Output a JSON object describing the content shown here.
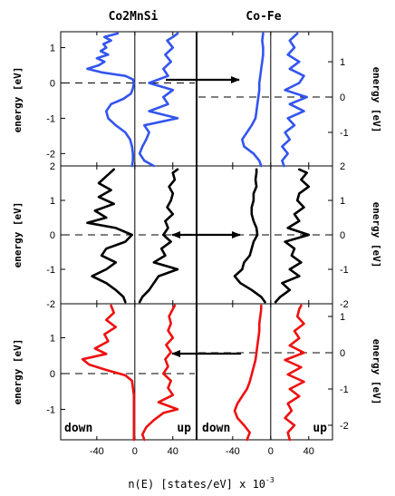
{
  "figure": {
    "left_title": "Co2MnSi",
    "right_title": "Co-Fe",
    "left_ylabel": "energy [eV]",
    "right_ylabel": "energy [eV]",
    "xlabel_main": "n(E)  [states/eV] x 10",
    "xlabel_exp": "-3",
    "spin_down": "down",
    "spin_up": "up"
  },
  "chart_data": [
    {
      "type": "line",
      "row": "top",
      "system": "Co2MnSi",
      "color": "#3355ee",
      "ylim": [
        -2.35,
        1.45
      ],
      "yticks": [
        -2,
        -1,
        0,
        1
      ],
      "xlim": [
        -78,
        65
      ],
      "fermi": 0,
      "down": {
        "y": [
          -2.35,
          -2.2,
          -2.0,
          -1.8,
          -1.6,
          -1.4,
          -1.2,
          -1.0,
          -0.8,
          -0.6,
          -0.45,
          -0.3,
          -0.15,
          0.0,
          0.1,
          0.2,
          0.3,
          0.4,
          0.5,
          0.6,
          0.7,
          0.8,
          0.9,
          1.0,
          1.1,
          1.2,
          1.3,
          1.4
        ],
        "n": [
          -3,
          -2,
          -2,
          -3,
          -5,
          -10,
          -20,
          -28,
          -30,
          -25,
          -12,
          -4,
          -2,
          -1,
          -2,
          -10,
          -35,
          -50,
          -38,
          -32,
          -40,
          -28,
          -36,
          -30,
          -33,
          -25,
          -32,
          -18
        ]
      },
      "up": {
        "y": [
          -2.35,
          -2.2,
          -2.0,
          -1.8,
          -1.6,
          -1.4,
          -1.2,
          -1.0,
          -0.8,
          -0.6,
          -0.4,
          -0.2,
          0.0,
          0.2,
          0.4,
          0.6,
          0.8,
          1.0,
          1.2,
          1.3,
          1.4
        ],
        "n": [
          20,
          10,
          5,
          8,
          12,
          15,
          10,
          45,
          15,
          35,
          30,
          40,
          15,
          35,
          30,
          38,
          32,
          40,
          34,
          40,
          45
        ]
      }
    },
    {
      "type": "line",
      "row": "middle",
      "system": "Co2MnSi",
      "color": "#000000",
      "ylim": [
        -2.0,
        2.0
      ],
      "yticks": [
        -2,
        -1,
        0,
        1,
        2
      ],
      "xlim": [
        -78,
        65
      ],
      "fermi": 0,
      "down": {
        "y": [
          -1.95,
          -1.8,
          -1.6,
          -1.4,
          -1.2,
          -1.0,
          -0.8,
          -0.6,
          -0.4,
          -0.2,
          0.0,
          0.2,
          0.35,
          0.5,
          0.7,
          0.9,
          1.1,
          1.3,
          1.5,
          1.7,
          1.9
        ],
        "n": [
          -10,
          -12,
          -20,
          -30,
          -45,
          -30,
          -20,
          -35,
          -30,
          -10,
          -3,
          -20,
          -50,
          -30,
          -42,
          -22,
          -38,
          -25,
          -38,
          -30,
          -22
        ]
      },
      "up": {
        "y": [
          -1.95,
          -1.8,
          -1.6,
          -1.4,
          -1.2,
          -1.0,
          -0.8,
          -0.6,
          -0.4,
          -0.2,
          0.0,
          0.2,
          0.4,
          0.6,
          0.8,
          1.0,
          1.2,
          1.4,
          1.6,
          1.8,
          1.9
        ],
        "n": [
          5,
          8,
          15,
          20,
          25,
          45,
          20,
          32,
          28,
          38,
          30,
          35,
          32,
          40,
          34,
          38,
          40,
          36,
          42,
          40,
          45
        ]
      }
    },
    {
      "type": "line",
      "row": "bottom",
      "system": "Co2MnSi",
      "color": "#ee1111",
      "ylim": [
        -1.85,
        1.95
      ],
      "yticks": [
        -1,
        0,
        1
      ],
      "xlim": [
        -78,
        65
      ],
      "fermi": 0,
      "down": {
        "y": [
          -1.85,
          -1.6,
          -1.4,
          -1.2,
          -1.0,
          -0.8,
          -0.6,
          -0.4,
          -0.2,
          -0.05,
          0.1,
          0.25,
          0.4,
          0.55,
          0.7,
          0.9,
          1.1,
          1.3,
          1.5,
          1.7,
          1.9
        ],
        "n": [
          -1,
          -1,
          -1,
          -1,
          -1,
          -1,
          -1,
          -2,
          -3,
          -10,
          -30,
          -48,
          -55,
          -30,
          -42,
          -28,
          -32,
          -20,
          -30,
          -22,
          -25
        ]
      },
      "up": {
        "y": [
          -1.85,
          -1.7,
          -1.5,
          -1.3,
          -1.1,
          -1.0,
          -0.8,
          -0.6,
          -0.4,
          -0.2,
          0.0,
          0.2,
          0.4,
          0.6,
          0.8,
          1.0,
          1.2,
          1.4,
          1.6,
          1.8,
          1.9
        ],
        "n": [
          10,
          8,
          12,
          20,
          30,
          45,
          25,
          40,
          35,
          38,
          30,
          35,
          32,
          38,
          33,
          40,
          35,
          38,
          36,
          40,
          42
        ]
      }
    },
    {
      "type": "line",
      "row": "top",
      "system": "Co-Fe",
      "color": "#3355ee",
      "ylim": [
        -1.95,
        1.85
      ],
      "yticks": [
        -1,
        0,
        1
      ],
      "xlim": [
        -78,
        65
      ],
      "fermi": 0,
      "down": {
        "y": [
          -1.95,
          -1.8,
          -1.6,
          -1.4,
          -1.2,
          -1.0,
          -0.8,
          -0.6,
          -0.4,
          -0.2,
          0.0,
          0.2,
          0.4,
          0.6,
          0.8,
          1.0,
          1.2,
          1.4,
          1.6,
          1.8
        ],
        "n": [
          -10,
          -12,
          -18,
          -28,
          -30,
          -25,
          -20,
          -16,
          -15,
          -14,
          -13,
          -12,
          -12,
          -11,
          -10,
          -9,
          -8,
          -8,
          -9,
          -8
        ]
      },
      "up": {
        "y": [
          -1.95,
          -1.8,
          -1.6,
          -1.4,
          -1.2,
          -1.0,
          -0.8,
          -0.6,
          -0.4,
          -0.2,
          0.0,
          0.2,
          0.4,
          0.6,
          0.8,
          1.0,
          1.2,
          1.4,
          1.6,
          1.8
        ],
        "n": [
          14,
          12,
          18,
          12,
          20,
          15,
          25,
          18,
          35,
          20,
          38,
          15,
          30,
          35,
          20,
          30,
          18,
          25,
          20,
          28
        ]
      }
    },
    {
      "type": "line",
      "row": "middle",
      "system": "Co-Fe",
      "color": "#000000",
      "ylim": [
        -2.0,
        2.0
      ],
      "yticks": [
        -2,
        -1,
        0,
        1,
        2
      ],
      "xlim": [
        -78,
        65
      ],
      "fermi": 0,
      "down": {
        "y": [
          -1.95,
          -1.8,
          -1.6,
          -1.4,
          -1.2,
          -1.0,
          -0.8,
          -0.6,
          -0.4,
          -0.2,
          0.0,
          0.2,
          0.4,
          0.6,
          0.8,
          1.0,
          1.2,
          1.4,
          1.6,
          1.8,
          1.9
        ],
        "n": [
          -6,
          -10,
          -20,
          -32,
          -38,
          -30,
          -28,
          -22,
          -20,
          -18,
          -14,
          -15,
          -18,
          -20,
          -20,
          -18,
          -18,
          -15,
          -16,
          -15,
          -15
        ]
      },
      "up": {
        "y": [
          -1.95,
          -1.8,
          -1.6,
          -1.4,
          -1.2,
          -1.0,
          -0.8,
          -0.6,
          -0.4,
          -0.2,
          0.0,
          0.2,
          0.4,
          0.6,
          0.8,
          1.0,
          1.2,
          1.4,
          1.6,
          1.8,
          1.9
        ],
        "n": [
          5,
          10,
          20,
          12,
          30,
          20,
          32,
          22,
          25,
          15,
          40,
          18,
          30,
          25,
          35,
          28,
          30,
          40,
          32,
          38,
          30
        ]
      }
    },
    {
      "type": "line",
      "row": "bottom",
      "system": "Co-Fe",
      "color": "#ee1111",
      "ylim": [
        -2.4,
        1.35
      ],
      "yticks": [
        -2,
        -1,
        0,
        1
      ],
      "xlim": [
        -78,
        65
      ],
      "fermi": 0,
      "down": {
        "y": [
          -2.4,
          -2.2,
          -2.0,
          -1.8,
          -1.6,
          -1.4,
          -1.2,
          -1.0,
          -0.8,
          -0.6,
          -0.4,
          -0.2,
          0.0,
          0.2,
          0.4,
          0.6,
          0.8,
          1.0,
          1.2,
          1.3
        ],
        "n": [
          -25,
          -22,
          -28,
          -35,
          -38,
          -35,
          -30,
          -25,
          -22,
          -20,
          -18,
          -16,
          -15,
          -14,
          -13,
          -12,
          -12,
          -11,
          -10,
          -10
        ]
      },
      "up": {
        "y": [
          -2.4,
          -2.2,
          -2.0,
          -1.8,
          -1.6,
          -1.4,
          -1.2,
          -1.0,
          -0.8,
          -0.6,
          -0.4,
          -0.2,
          0.0,
          0.2,
          0.4,
          0.6,
          0.8,
          1.0,
          1.2,
          1.3
        ],
        "n": [
          20,
          18,
          25,
          15,
          22,
          18,
          30,
          20,
          35,
          18,
          32,
          15,
          35,
          20,
          30,
          25,
          35,
          28,
          30,
          32
        ]
      }
    }
  ],
  "x_tick_labels": [
    "-40",
    "0",
    "40"
  ]
}
